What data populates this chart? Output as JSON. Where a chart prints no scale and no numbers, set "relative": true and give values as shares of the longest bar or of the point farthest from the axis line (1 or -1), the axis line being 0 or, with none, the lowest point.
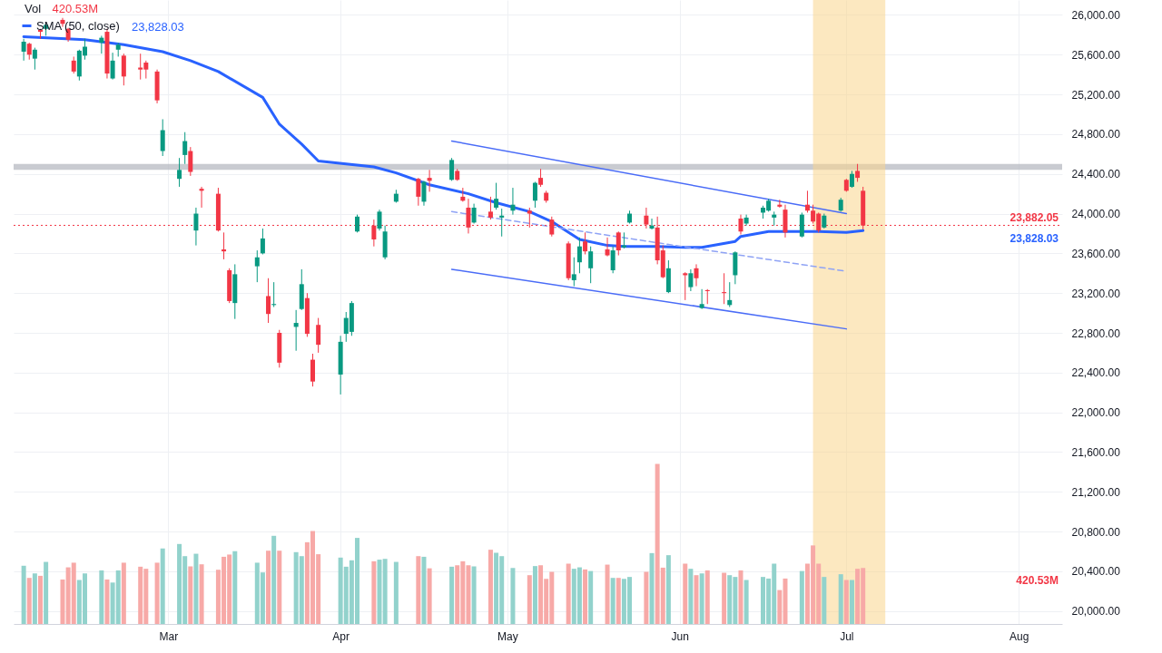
{
  "chart_data": [
    {
      "type": "candlestick",
      "x": [
        "--02-03",
        "--02-04",
        "--02-05",
        "--02-06",
        "--02-07",
        "--02-10",
        "--02-11",
        "--02-12",
        "--02-13",
        "--02-14",
        "--02-17",
        "--02-18",
        "--02-19",
        "--02-20",
        "--02-21",
        "--02-24",
        "--02-25",
        "--02-27",
        "--02-28",
        "--03-03",
        "--03-04",
        "--03-05",
        "--03-06",
        "--03-07",
        "--03-10",
        "--03-11",
        "--03-12",
        "--03-13",
        "--03-17",
        "--03-18",
        "--03-19",
        "--03-20",
        "--03-21",
        "--03-24",
        "--03-25",
        "--03-26",
        "--03-27",
        "--03-28",
        "--04-01",
        "--04-02",
        "--04-03",
        "--04-04",
        "--04-07",
        "--04-08",
        "--04-09",
        "--04-11",
        "--04-15",
        "--04-16",
        "--04-17",
        "--04-21",
        "--04-22",
        "--04-23",
        "--04-24",
        "--04-25",
        "--04-28",
        "--04-29",
        "--04-30",
        "--05-02",
        "--05-05",
        "--05-06",
        "--05-07",
        "--05-08",
        "--05-09",
        "--05-12",
        "--05-13",
        "--05-14",
        "--05-15",
        "--05-16",
        "--05-19",
        "--05-20",
        "--05-21",
        "--05-22",
        "--05-23",
        "--05-26",
        "--05-27",
        "--05-28",
        "--05-29",
        "--05-30",
        "--06-02",
        "--06-03",
        "--06-04",
        "--06-05",
        "--06-06",
        "--06-09",
        "--06-10",
        "--06-11",
        "--06-12",
        "--06-13",
        "--06-16",
        "--06-17",
        "--06-18",
        "--06-19",
        "--06-20",
        "--06-23",
        "--06-24",
        "--06-25",
        "--06-26",
        "--06-27",
        "--06-30",
        "--07-01",
        "--07-02",
        "--07-03",
        "--07-04"
      ],
      "ohlc": [
        [
          25630,
          25760,
          25540,
          25730
        ],
        [
          25710,
          25720,
          25550,
          25600
        ],
        [
          25560,
          25670,
          25450,
          25650
        ],
        [
          25850,
          25860,
          25760,
          25830
        ],
        [
          25860,
          25920,
          25790,
          25900
        ],
        [
          25950,
          25970,
          25880,
          25910
        ],
        [
          25860,
          25870,
          25730,
          25750
        ],
        [
          25540,
          25580,
          25410,
          25430
        ],
        [
          25380,
          25650,
          25340,
          25640
        ],
        [
          25590,
          25760,
          25550,
          25680
        ],
        [
          25720,
          25790,
          25610,
          25770
        ],
        [
          25830,
          25860,
          25360,
          25410
        ],
        [
          25360,
          25620,
          25350,
          25540
        ],
        [
          25650,
          25720,
          25580,
          25700
        ],
        [
          25590,
          25610,
          25290,
          25380
        ],
        [
          25470,
          25610,
          25350,
          25450
        ],
        [
          25520,
          25540,
          25360,
          25450
        ],
        [
          25430,
          25450,
          25110,
          25140
        ],
        [
          24630,
          24950,
          24580,
          24840
        ],
        [
          24350,
          24560,
          24270,
          24440
        ],
        [
          24590,
          24820,
          24500,
          24730
        ],
        [
          24630,
          24670,
          24380,
          24420
        ],
        [
          23830,
          24060,
          23680,
          24000
        ],
        [
          24250,
          24270,
          24060,
          24230
        ],
        [
          24200,
          24260,
          23820,
          23830
        ],
        [
          23640,
          23810,
          23540,
          23620
        ],
        [
          23430,
          23450,
          23100,
          23120
        ],
        [
          23100,
          23490,
          22940,
          23390
        ],
        [
          23470,
          23630,
          23310,
          23560
        ],
        [
          23600,
          23850,
          23590,
          23750
        ],
        [
          23170,
          23350,
          22900,
          22990
        ],
        [
          23080,
          23310,
          23060,
          23090
        ],
        [
          22800,
          22830,
          22450,
          22500
        ],
        [
          22860,
          23030,
          22620,
          22900
        ],
        [
          23040,
          23440,
          23030,
          23290
        ],
        [
          23150,
          23200,
          22760,
          22790
        ],
        [
          22530,
          22590,
          22260,
          22310
        ],
        [
          22880,
          22950,
          22600,
          22680
        ],
        [
          22380,
          22770,
          22180,
          22710
        ],
        [
          22790,
          23010,
          22710,
          22950
        ],
        [
          22810,
          23120,
          22770,
          23100
        ],
        [
          23820,
          23990,
          23810,
          23970
        ],
        [
          23880,
          23940,
          23670,
          23740
        ],
        [
          23850,
          24040,
          23830,
          24020
        ],
        [
          23560,
          23880,
          23540,
          23820
        ],
        [
          24120,
          24240,
          24110,
          24200
        ],
        [
          24350,
          24360,
          24080,
          24170
        ],
        [
          24120,
          24330,
          24080,
          24320
        ],
        [
          24360,
          24440,
          24220,
          24330
        ],
        [
          24340,
          24560,
          24330,
          24540
        ],
        [
          24430,
          24450,
          24330,
          24340
        ],
        [
          24170,
          24260,
          24120,
          24130
        ],
        [
          24060,
          24150,
          23800,
          23860
        ],
        [
          23910,
          24100,
          23900,
          24060
        ],
        [
          24020,
          24170,
          23940,
          23960
        ],
        [
          24060,
          24310,
          24040,
          24150
        ],
        [
          23960,
          24050,
          23770,
          23980
        ],
        [
          24030,
          24260,
          23990,
          24090
        ],
        [
          24030,
          24060,
          23860,
          24000
        ],
        [
          24130,
          24320,
          24060,
          24310
        ],
        [
          24360,
          24450,
          24270,
          24290
        ],
        [
          24210,
          24230,
          24110,
          24130
        ],
        [
          23940,
          23970,
          23770,
          23790
        ],
        [
          23700,
          23720,
          23330,
          23350
        ],
        [
          23330,
          23560,
          23270,
          23390
        ],
        [
          23510,
          23760,
          23400,
          23670
        ],
        [
          23720,
          23810,
          23590,
          23620
        ],
        [
          23450,
          23670,
          23300,
          23620
        ],
        [
          23640,
          23760,
          23570,
          23580
        ],
        [
          23430,
          23670,
          23400,
          23630
        ],
        [
          23810,
          23820,
          23580,
          23630
        ],
        [
          23660,
          23810,
          23650,
          23680
        ],
        [
          23910,
          24030,
          23900,
          24000
        ],
        [
          23980,
          24060,
          23850,
          23890
        ],
        [
          23850,
          23950,
          23840,
          23880
        ],
        [
          23860,
          23970,
          23490,
          23530
        ],
        [
          23630,
          23680,
          23350,
          23360
        ],
        [
          23210,
          23530,
          23200,
          23450
        ],
        [
          23400,
          23410,
          23130,
          23380
        ],
        [
          23260,
          23440,
          23220,
          23400
        ],
        [
          23450,
          23490,
          23270,
          23350
        ],
        [
          23050,
          23240,
          23040,
          23090
        ],
        [
          23230,
          23240,
          23090,
          23220
        ],
        [
          23210,
          23400,
          23090,
          23200
        ],
        [
          23080,
          23310,
          23060,
          23130
        ],
        [
          23380,
          23620,
          23290,
          23610
        ],
        [
          23950,
          23990,
          23790,
          23820
        ],
        [
          23900,
          23990,
          23880,
          23960
        ],
        [
          24010,
          24080,
          23950,
          24060
        ],
        [
          24030,
          24150,
          24020,
          24130
        ],
        [
          23960,
          24020,
          23880,
          23990
        ],
        [
          24090,
          24140,
          24060,
          24070
        ],
        [
          24040,
          24090,
          23760,
          23810
        ],
        [
          23770,
          24010,
          23760,
          23990
        ],
        [
          24090,
          24230,
          24010,
          24030
        ],
        [
          24030,
          24090,
          23900,
          23920
        ],
        [
          24000,
          24010,
          23810,
          23830
        ],
        [
          23860,
          24000,
          23850,
          23980
        ],
        [
          24030,
          24160,
          24020,
          24140
        ],
        [
          24340,
          24350,
          24220,
          24230
        ],
        [
          24270,
          24430,
          24260,
          24400
        ],
        [
          24430,
          24500,
          24320,
          24360
        ],
        [
          24230,
          24270,
          23840,
          23880
        ]
      ],
      "colors": [
        "#089981",
        "#f23645",
        "#089981",
        "#f23645",
        "#089981",
        "#f23645",
        "#f23645",
        "#f23645",
        "#089981",
        "#089981",
        "#089981",
        "#f23645",
        "#089981",
        "#089981",
        "#f23645",
        "#f23645",
        "#f23645",
        "#f23645",
        "#089981",
        "#089981",
        "#089981",
        "#f23645",
        "#089981",
        "#f23645",
        "#f23645",
        "#f23645",
        "#f23645",
        "#089981",
        "#089981",
        "#089981",
        "#f23645",
        "#089981",
        "#f23645",
        "#089981",
        "#089981",
        "#f23645",
        "#f23645",
        "#f23645",
        "#089981",
        "#089981",
        "#089981",
        "#089981",
        "#f23645",
        "#089981",
        "#089981",
        "#089981",
        "#f23645",
        "#089981",
        "#f23645",
        "#089981",
        "#f23645",
        "#f23645",
        "#f23645",
        "#089981",
        "#f23645",
        "#089981",
        "#089981",
        "#089981",
        "#f23645",
        "#089981",
        "#f23645",
        "#f23645",
        "#f23645",
        "#f23645",
        "#089981",
        "#089981",
        "#f23645",
        "#089981",
        "#f23645",
        "#089981",
        "#f23645",
        "#089981",
        "#089981",
        "#f23645",
        "#089981",
        "#f23645",
        "#f23645",
        "#089981",
        "#f23645",
        "#089981",
        "#f23645",
        "#089981",
        "#f23645",
        "#f23645",
        "#089981",
        "#089981",
        "#f23645",
        "#089981",
        "#089981",
        "#089981",
        "#089981",
        "#f23645",
        "#f23645",
        "#089981",
        "#f23645",
        "#f23645",
        "#f23645",
        "#089981",
        "#089981",
        "#f23645",
        "#089981",
        "#f23645",
        "#f23645"
      ],
      "series": [
        {
          "name": "SMA (50, close)",
          "type": "line",
          "color": "#2962ff",
          "x": [
            "--02-03",
            "--02-14",
            "--02-21",
            "--02-28",
            "--03-05",
            "--03-10",
            "--03-18",
            "--03-21",
            "--03-25",
            "--03-28",
            "--04-07",
            "--04-11",
            "--04-17",
            "--04-24",
            "--04-29",
            "--05-05",
            "--05-09",
            "--05-14",
            "--05-19",
            "--05-22",
            "--05-28",
            "--06-02",
            "--06-05",
            "--06-11",
            "--06-12",
            "--06-17",
            "--06-20",
            "--06-26",
            "--07-01",
            "--07-04"
          ],
          "values": [
            25780,
            25750,
            25700,
            25630,
            25540,
            25430,
            25170,
            24900,
            24700,
            24530,
            24470,
            24410,
            24290,
            24200,
            24110,
            24020,
            23920,
            23740,
            23680,
            23670,
            23670,
            23660,
            23660,
            23720,
            23770,
            23820,
            23820,
            23820,
            23810,
            23830
          ]
        },
        {
          "type": "line",
          "color": "#4a6cf7",
          "x": [
            "--04-21",
            "--07-01"
          ],
          "values": [
            24730,
            24000
          ]
        },
        {
          "type": "line",
          "color": "#8fa3f5",
          "line_style": "dashed",
          "x": [
            "--04-21",
            "--07-01"
          ],
          "values": [
            24020,
            23420
          ]
        },
        {
          "type": "line",
          "color": "#4a6cf7",
          "x": [
            "--04-21",
            "--07-01"
          ],
          "values": [
            23440,
            22840
          ]
        }
      ],
      "bands": [
        {
          "axis": "y",
          "from": 24440,
          "to": 24500,
          "color": "#b2b5be"
        },
        {
          "axis": "x",
          "from": "--06-25",
          "to": "--07-08",
          "color": "#f9d58c"
        }
      ],
      "ref_lines": [
        {
          "axis": "y",
          "value": 23882.05,
          "label": "23,882.05",
          "color": "#f23645",
          "line_style": "dotted"
        }
      ],
      "annotations": [
        "23,828.03",
        "23,828.03"
      ],
      "xlim": [
        "--02-02",
        "--08-08"
      ],
      "xticks": [
        {
          "value": "--03-01",
          "label": "Mar"
        },
        {
          "value": "--04-01",
          "label": "Apr"
        },
        {
          "value": "--05-01",
          "label": "May"
        },
        {
          "value": "--06-01",
          "label": "Jun"
        },
        {
          "value": "--07-01",
          "label": "Jul"
        },
        {
          "value": "--08-01",
          "label": "Aug"
        }
      ],
      "ylim": [
        19870,
        26150
      ],
      "yticks": [
        {
          "value": 20000,
          "label": "20,000.00"
        },
        {
          "value": 20400,
          "label": "20,400.00"
        },
        {
          "value": 20800,
          "label": "20,800.00"
        },
        {
          "value": 21200,
          "label": "21,200.00"
        },
        {
          "value": 21600,
          "label": "21,600.00"
        },
        {
          "value": 22000,
          "label": "22,000.00"
        },
        {
          "value": 22400,
          "label": "22,400.00"
        },
        {
          "value": 22800,
          "label": "22,800.00"
        },
        {
          "value": 23200,
          "label": "23,200.00"
        },
        {
          "value": 23600,
          "label": "23,600.00"
        },
        {
          "value": 24000,
          "label": "24,000.00"
        },
        {
          "value": 24400,
          "label": "24,400.00"
        },
        {
          "value": 24800,
          "label": "24,800.00"
        },
        {
          "value": 25200,
          "label": "25,200.00"
        },
        {
          "value": 25600,
          "label": "25,600.00"
        },
        {
          "value": 26000,
          "label": "26,000.00"
        }
      ],
      "grid": true,
      "legend": "top left"
    },
    {
      "type": "bar",
      "relative": true,
      "x": [
        "--02-03",
        "--02-04",
        "--02-05",
        "--02-06",
        "--02-07",
        "--02-10",
        "--02-11",
        "--02-12",
        "--02-13",
        "--02-14",
        "--02-17",
        "--02-18",
        "--02-19",
        "--02-20",
        "--02-21",
        "--02-24",
        "--02-25",
        "--02-27",
        "--02-28",
        "--03-03",
        "--03-04",
        "--03-05",
        "--03-06",
        "--03-07",
        "--03-10",
        "--03-11",
        "--03-12",
        "--03-13",
        "--03-17",
        "--03-18",
        "--03-19",
        "--03-20",
        "--03-21",
        "--03-24",
        "--03-25",
        "--03-26",
        "--03-27",
        "--03-28",
        "--04-01",
        "--04-02",
        "--04-03",
        "--04-04",
        "--04-07",
        "--04-08",
        "--04-09",
        "--04-11",
        "--04-15",
        "--04-16",
        "--04-17",
        "--04-21",
        "--04-22",
        "--04-23",
        "--04-24",
        "--04-25",
        "--04-28",
        "--04-29",
        "--04-30",
        "--05-02",
        "--05-05",
        "--05-06",
        "--05-07",
        "--05-08",
        "--05-09",
        "--05-12",
        "--05-13",
        "--05-14",
        "--05-15",
        "--05-16",
        "--05-19",
        "--05-20",
        "--05-21",
        "--05-22",
        "--05-23",
        "--05-26",
        "--05-27",
        "--05-28",
        "--05-29",
        "--05-30",
        "--06-02",
        "--06-03",
        "--06-04",
        "--06-05",
        "--06-06",
        "--06-09",
        "--06-10",
        "--06-11",
        "--06-12",
        "--06-13",
        "--06-16",
        "--06-17",
        "--06-18",
        "--06-19",
        "--06-20",
        "--06-23",
        "--06-24",
        "--06-25",
        "--06-26",
        "--06-27",
        "--06-30",
        "--07-01",
        "--07-02",
        "--07-03",
        "--07-04"
      ],
      "values": [
        0.364,
        0.288,
        0.316,
        0.301,
        0.388,
        0.278,
        0.354,
        0.383,
        0.275,
        0.316,
        0.335,
        0.278,
        0.259,
        0.335,
        0.383,
        0.358,
        0.345,
        0.383,
        0.472,
        0.5,
        0.424,
        0.36,
        0.439,
        0.373,
        0.339,
        0.42,
        0.434,
        0.455,
        0.383,
        0.322,
        0.458,
        0.551,
        0.458,
        0.449,
        0.424,
        0.511,
        0.581,
        0.436,
        0.415,
        0.358,
        0.398,
        0.538,
        0.392,
        0.402,
        0.407,
        0.388,
        0.424,
        0.42,
        0.348,
        0.358,
        0.367,
        0.392,
        0.367,
        0.36,
        0.464,
        0.445,
        0.424,
        0.35,
        0.305,
        0.362,
        0.367,
        0.282,
        0.326,
        0.377,
        0.345,
        0.354,
        0.341,
        0.331,
        0.371,
        0.288,
        0.288,
        0.282,
        0.294,
        0.326,
        0.443,
        1,
        0.352,
        0.43,
        0.377,
        0.345,
        0.305,
        0.316,
        0.335,
        0.32,
        0.305,
        0.294,
        0.335,
        0.275,
        0.294,
        0.284,
        0.377,
        0.212,
        0.284,
        0.331,
        0.377,
        0.491,
        0.377,
        0.294,
        0.311,
        0.275,
        0.275,
        0.345,
        0.35
      ],
      "colors": [
        "#92d2cc",
        "#f7a9a7",
        "#92d2cc",
        "#f7a9a7",
        "#92d2cc",
        "#f7a9a7",
        "#f7a9a7",
        "#f7a9a7",
        "#92d2cc",
        "#92d2cc",
        "#92d2cc",
        "#f7a9a7",
        "#92d2cc",
        "#92d2cc",
        "#f7a9a7",
        "#f7a9a7",
        "#f7a9a7",
        "#f7a9a7",
        "#92d2cc",
        "#92d2cc",
        "#92d2cc",
        "#f7a9a7",
        "#92d2cc",
        "#f7a9a7",
        "#f7a9a7",
        "#f7a9a7",
        "#f7a9a7",
        "#92d2cc",
        "#92d2cc",
        "#92d2cc",
        "#f7a9a7",
        "#92d2cc",
        "#f7a9a7",
        "#92d2cc",
        "#92d2cc",
        "#f7a9a7",
        "#f7a9a7",
        "#f7a9a7",
        "#92d2cc",
        "#92d2cc",
        "#92d2cc",
        "#92d2cc",
        "#f7a9a7",
        "#92d2cc",
        "#92d2cc",
        "#92d2cc",
        "#f7a9a7",
        "#92d2cc",
        "#f7a9a7",
        "#92d2cc",
        "#f7a9a7",
        "#f7a9a7",
        "#f7a9a7",
        "#92d2cc",
        "#f7a9a7",
        "#92d2cc",
        "#92d2cc",
        "#92d2cc",
        "#f7a9a7",
        "#92d2cc",
        "#f7a9a7",
        "#f7a9a7",
        "#f7a9a7",
        "#f7a9a7",
        "#92d2cc",
        "#92d2cc",
        "#f7a9a7",
        "#92d2cc",
        "#f7a9a7",
        "#92d2cc",
        "#f7a9a7",
        "#92d2cc",
        "#92d2cc",
        "#f7a9a7",
        "#92d2cc",
        "#f7a9a7",
        "#f7a9a7",
        "#92d2cc",
        "#f7a9a7",
        "#92d2cc",
        "#f7a9a7",
        "#92d2cc",
        "#f7a9a7",
        "#f7a9a7",
        "#92d2cc",
        "#92d2cc",
        "#f7a9a7",
        "#92d2cc",
        "#92d2cc",
        "#92d2cc",
        "#92d2cc",
        "#f7a9a7",
        "#f7a9a7",
        "#92d2cc",
        "#f7a9a7",
        "#f7a9a7",
        "#f7a9a7",
        "#92d2cc",
        "#92d2cc",
        "#f7a9a7",
        "#92d2cc",
        "#f7a9a7",
        "#f7a9a7"
      ],
      "value_labels": [
        null,
        null,
        null,
        null,
        null,
        null,
        null,
        null,
        null,
        null,
        null,
        null,
        null,
        null,
        null,
        null,
        null,
        null,
        null,
        null,
        null,
        null,
        null,
        null,
        null,
        null,
        null,
        null,
        null,
        null,
        null,
        null,
        null,
        null,
        null,
        null,
        null,
        null,
        null,
        null,
        null,
        null,
        null,
        null,
        null,
        null,
        null,
        null,
        null,
        null,
        null,
        null,
        null,
        null,
        null,
        null,
        null,
        null,
        null,
        null,
        null,
        null,
        null,
        null,
        null,
        null,
        null,
        null,
        null,
        null,
        null,
        null,
        null,
        null,
        null,
        null,
        null,
        null,
        null,
        null,
        null,
        null,
        null,
        null,
        null,
        null,
        null,
        null,
        null,
        null,
        null,
        null,
        null,
        null,
        null,
        null,
        null,
        null,
        null,
        null,
        null,
        null,
        null
      ],
      "xlim": [
        "--02-02",
        "--08-08"
      ],
      "annotations": [
        "Vol",
        "420.53M",
        "420.53M"
      ]
    }
  ]
}
